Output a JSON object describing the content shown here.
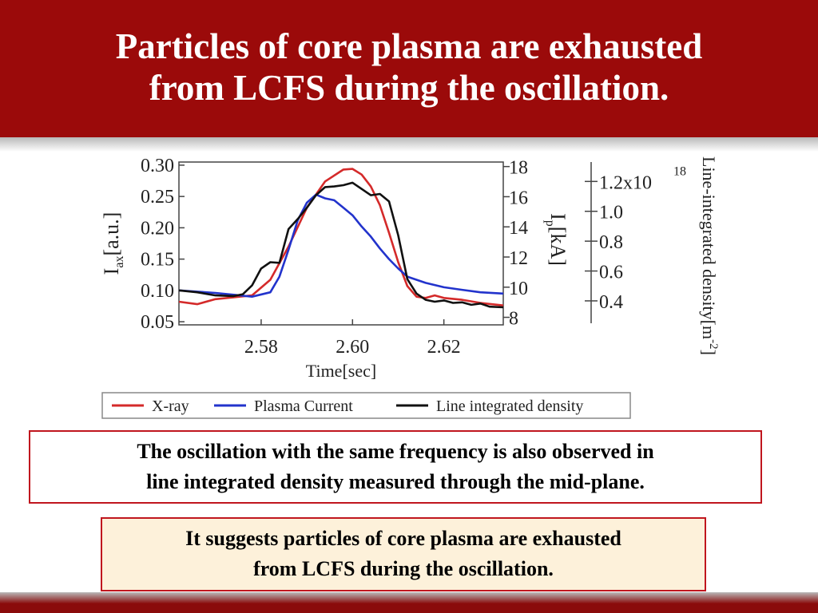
{
  "slide": {
    "title_lines": [
      "Particles of core plasma are exhausted",
      "from LCFS during the oscillation."
    ],
    "box1_lines": [
      "The oscillation with the same frequency is also observed in",
      "line integrated density measured through the mid-plane."
    ],
    "box2_lines": [
      "It suggests particles of core plasma are exhausted",
      "from LCFS during the oscillation."
    ]
  },
  "colors": {
    "header": "#9b0a0a",
    "box_border": "#c0161e",
    "box2_fill": "#fdf1da"
  },
  "chart_data": {
    "type": "line",
    "xlabel": "Time[sec]",
    "xlim": [
      2.562,
      2.633
    ],
    "x_ticks": [
      2.58,
      2.6,
      2.62
    ],
    "x_tick_labels": [
      "2.58",
      "2.60",
      "2.62"
    ],
    "axes": {
      "left": {
        "label": "I",
        "label_sub": "ax",
        "label_rest": "[a.u.]",
        "lim": [
          0.045,
          0.305
        ],
        "ticks": [
          0.05,
          0.1,
          0.15,
          0.2,
          0.25,
          0.3
        ],
        "tick_labels": [
          "0.05",
          "0.10",
          "0.15",
          "0.20",
          "0.25",
          "0.30"
        ]
      },
      "right1": {
        "label": "I",
        "label_sub": "p",
        "label_rest": "[kA]",
        "lim": [
          7.5,
          18.3
        ],
        "ticks": [
          8,
          10,
          12,
          14,
          16,
          18
        ],
        "tick_labels": [
          "8",
          "10",
          "12",
          "14",
          "16",
          "18"
        ]
      },
      "right2": {
        "label": "Line-integrated density[m",
        "label_sup": "-2",
        "label_end": "]",
        "lim": [
          0.25,
          1.33
        ],
        "ticks": [
          0.4,
          0.6,
          0.8,
          1.0,
          1.2
        ],
        "tick_labels": [
          "0.4",
          "0.6",
          "0.8",
          "1.0",
          "1.2x10"
        ],
        "tick_exp": "18"
      }
    },
    "legend": {
      "entries": [
        "X-ray",
        "Plasma Current",
        "Line integrated density"
      ],
      "placement": "bottom"
    },
    "series": [
      {
        "name": "X-ray",
        "color": "#d42a2a",
        "axis": "left",
        "x": [
          2.562,
          2.566,
          2.57,
          2.574,
          2.578,
          2.582,
          2.586,
          2.59,
          2.594,
          2.598,
          2.6,
          2.602,
          2.604,
          2.606,
          2.608,
          2.61,
          2.612,
          2.614,
          2.616,
          2.618,
          2.62,
          2.624,
          2.628,
          2.633
        ],
        "y": [
          0.082,
          0.078,
          0.086,
          0.089,
          0.092,
          0.117,
          0.17,
          0.232,
          0.274,
          0.293,
          0.294,
          0.285,
          0.266,
          0.236,
          0.192,
          0.145,
          0.107,
          0.09,
          0.088,
          0.092,
          0.088,
          0.085,
          0.08,
          0.076
        ]
      },
      {
        "name": "Plasma Current",
        "color": "#2233cc",
        "axis": "left",
        "x": [
          2.562,
          2.566,
          2.57,
          2.574,
          2.578,
          2.582,
          2.584,
          2.586,
          2.588,
          2.59,
          2.592,
          2.594,
          2.596,
          2.598,
          2.6,
          2.602,
          2.604,
          2.606,
          2.608,
          2.61,
          2.612,
          2.614,
          2.616,
          2.62,
          2.624,
          2.628,
          2.633
        ],
        "y": [
          0.1,
          0.098,
          0.096,
          0.093,
          0.09,
          0.097,
          0.122,
          0.165,
          0.212,
          0.24,
          0.253,
          0.247,
          0.244,
          0.232,
          0.22,
          0.202,
          0.186,
          0.167,
          0.15,
          0.135,
          0.122,
          0.117,
          0.112,
          0.105,
          0.101,
          0.097,
          0.095
        ]
      },
      {
        "name": "Line integrated density",
        "color": "#111111",
        "axis": "left",
        "x": [
          2.562,
          2.566,
          2.57,
          2.574,
          2.576,
          2.578,
          2.58,
          2.582,
          2.584,
          2.586,
          2.588,
          2.59,
          2.592,
          2.594,
          2.596,
          2.598,
          2.6,
          2.602,
          2.604,
          2.606,
          2.608,
          2.61,
          2.612,
          2.614,
          2.616,
          2.618,
          2.62,
          2.622,
          2.624,
          2.626,
          2.628,
          2.63,
          2.633
        ],
        "y": [
          0.1,
          0.097,
          0.092,
          0.091,
          0.094,
          0.108,
          0.135,
          0.145,
          0.144,
          0.198,
          0.214,
          0.232,
          0.252,
          0.265,
          0.266,
          0.268,
          0.272,
          0.262,
          0.252,
          0.254,
          0.242,
          0.188,
          0.118,
          0.095,
          0.085,
          0.082,
          0.084,
          0.08,
          0.081,
          0.077,
          0.079,
          0.074,
          0.073
        ]
      }
    ]
  }
}
